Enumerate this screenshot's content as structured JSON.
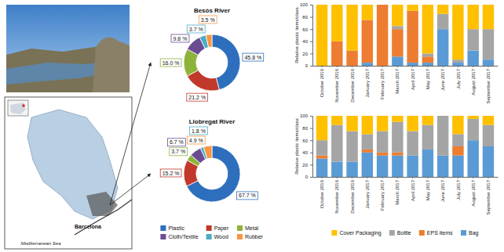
{
  "chart_data": [
    {
      "type": "pie",
      "title": "Besòs River",
      "values": [
        45.8,
        21.2,
        16.0,
        9.8,
        3.7,
        3.5
      ],
      "value_labels": [
        "45.8 %",
        "21.2 %",
        "16.0 %",
        "9.8 %",
        "3.7 %",
        "3.5 %"
      ],
      "colors": [
        "#2e6fbd",
        "#c0392b",
        "#8db33a",
        "#6a4c93",
        "#4bacc6",
        "#f79646"
      ],
      "data_labels": true
    },
    {
      "type": "pie",
      "title": "Llobregat River",
      "categories": [
        "Plastic",
        "Paper",
        "Metal",
        "Cloth/Textile",
        "Wood",
        "Rubber"
      ],
      "values": [
        67.7,
        15.2,
        3.7,
        6.7,
        1.8,
        4.9
      ],
      "value_labels": [
        "67.7 %",
        "15.2 %",
        "3.7 %",
        "6.7 %",
        "1.8 %",
        "4.9 %"
      ],
      "colors": [
        "#2e6fbd",
        "#c0392b",
        "#8db33a",
        "#6a4c93",
        "#4bacc6",
        "#f79646"
      ],
      "data_labels": true,
      "legend": "bottom"
    },
    {
      "type": "bar",
      "stacked": true,
      "y_label": "Relative plastic items/class",
      "categories": [
        "October 2016",
        "November 2016",
        "December 2016",
        "January 2017",
        "February 2017",
        "March 2017",
        "April 2017",
        "May 2017",
        "June 2017",
        "July 2017",
        "August 2017",
        "September 2017"
      ],
      "ylim": [
        0,
        100
      ],
      "yticks": [
        0,
        20,
        40,
        60,
        80,
        100
      ],
      "series": [
        {
          "color": "#5b9bd5",
          "values": [
            0,
            0,
            0,
            5,
            0,
            15,
            5,
            5,
            60,
            5,
            25,
            10
          ]
        },
        {
          "color": "#ed7d31",
          "values": [
            0,
            40,
            25,
            70,
            100,
            45,
            85,
            10,
            0,
            0,
            0,
            0
          ]
        },
        {
          "color": "#a5a5a5",
          "values": [
            0,
            0,
            0,
            0,
            0,
            5,
            0,
            5,
            25,
            5,
            35,
            50
          ]
        },
        {
          "color": "#ffc000",
          "values": [
            100,
            60,
            75,
            25,
            0,
            35,
            10,
            80,
            15,
            90,
            40,
            40
          ]
        }
      ]
    },
    {
      "type": "bar",
      "stacked": true,
      "y_label": "Relative plastic items/class",
      "categories": [
        "October 2016",
        "November 2016",
        "December 2016",
        "January 2017",
        "February 2017",
        "March 2017",
        "April 2017",
        "May 2017",
        "June 2017",
        "July 2017",
        "August 2017",
        "September 2017"
      ],
      "ylim": [
        0,
        100
      ],
      "yticks": [
        0,
        20,
        40,
        60,
        80,
        100
      ],
      "series": [
        {
          "name": "Bag",
          "color": "#5b9bd5",
          "values": [
            30,
            25,
            25,
            40,
            35,
            35,
            35,
            45,
            35,
            35,
            60,
            50
          ]
        },
        {
          "name": "EPS items",
          "color": "#ed7d31",
          "values": [
            5,
            0,
            0,
            5,
            5,
            5,
            0,
            0,
            0,
            15,
            0,
            0
          ]
        },
        {
          "name": "Bottle",
          "color": "#a5a5a5",
          "values": [
            25,
            60,
            50,
            25,
            35,
            50,
            40,
            40,
            65,
            20,
            35,
            35
          ]
        },
        {
          "name": "Cover Packaging",
          "color": "#ffc000",
          "values": [
            40,
            15,
            25,
            30,
            25,
            10,
            25,
            15,
            0,
            30,
            5,
            15
          ]
        }
      ],
      "legend": "bottom"
    }
  ],
  "map": {
    "city": "Barcelona",
    "sea": "Mediterranean Sea"
  }
}
